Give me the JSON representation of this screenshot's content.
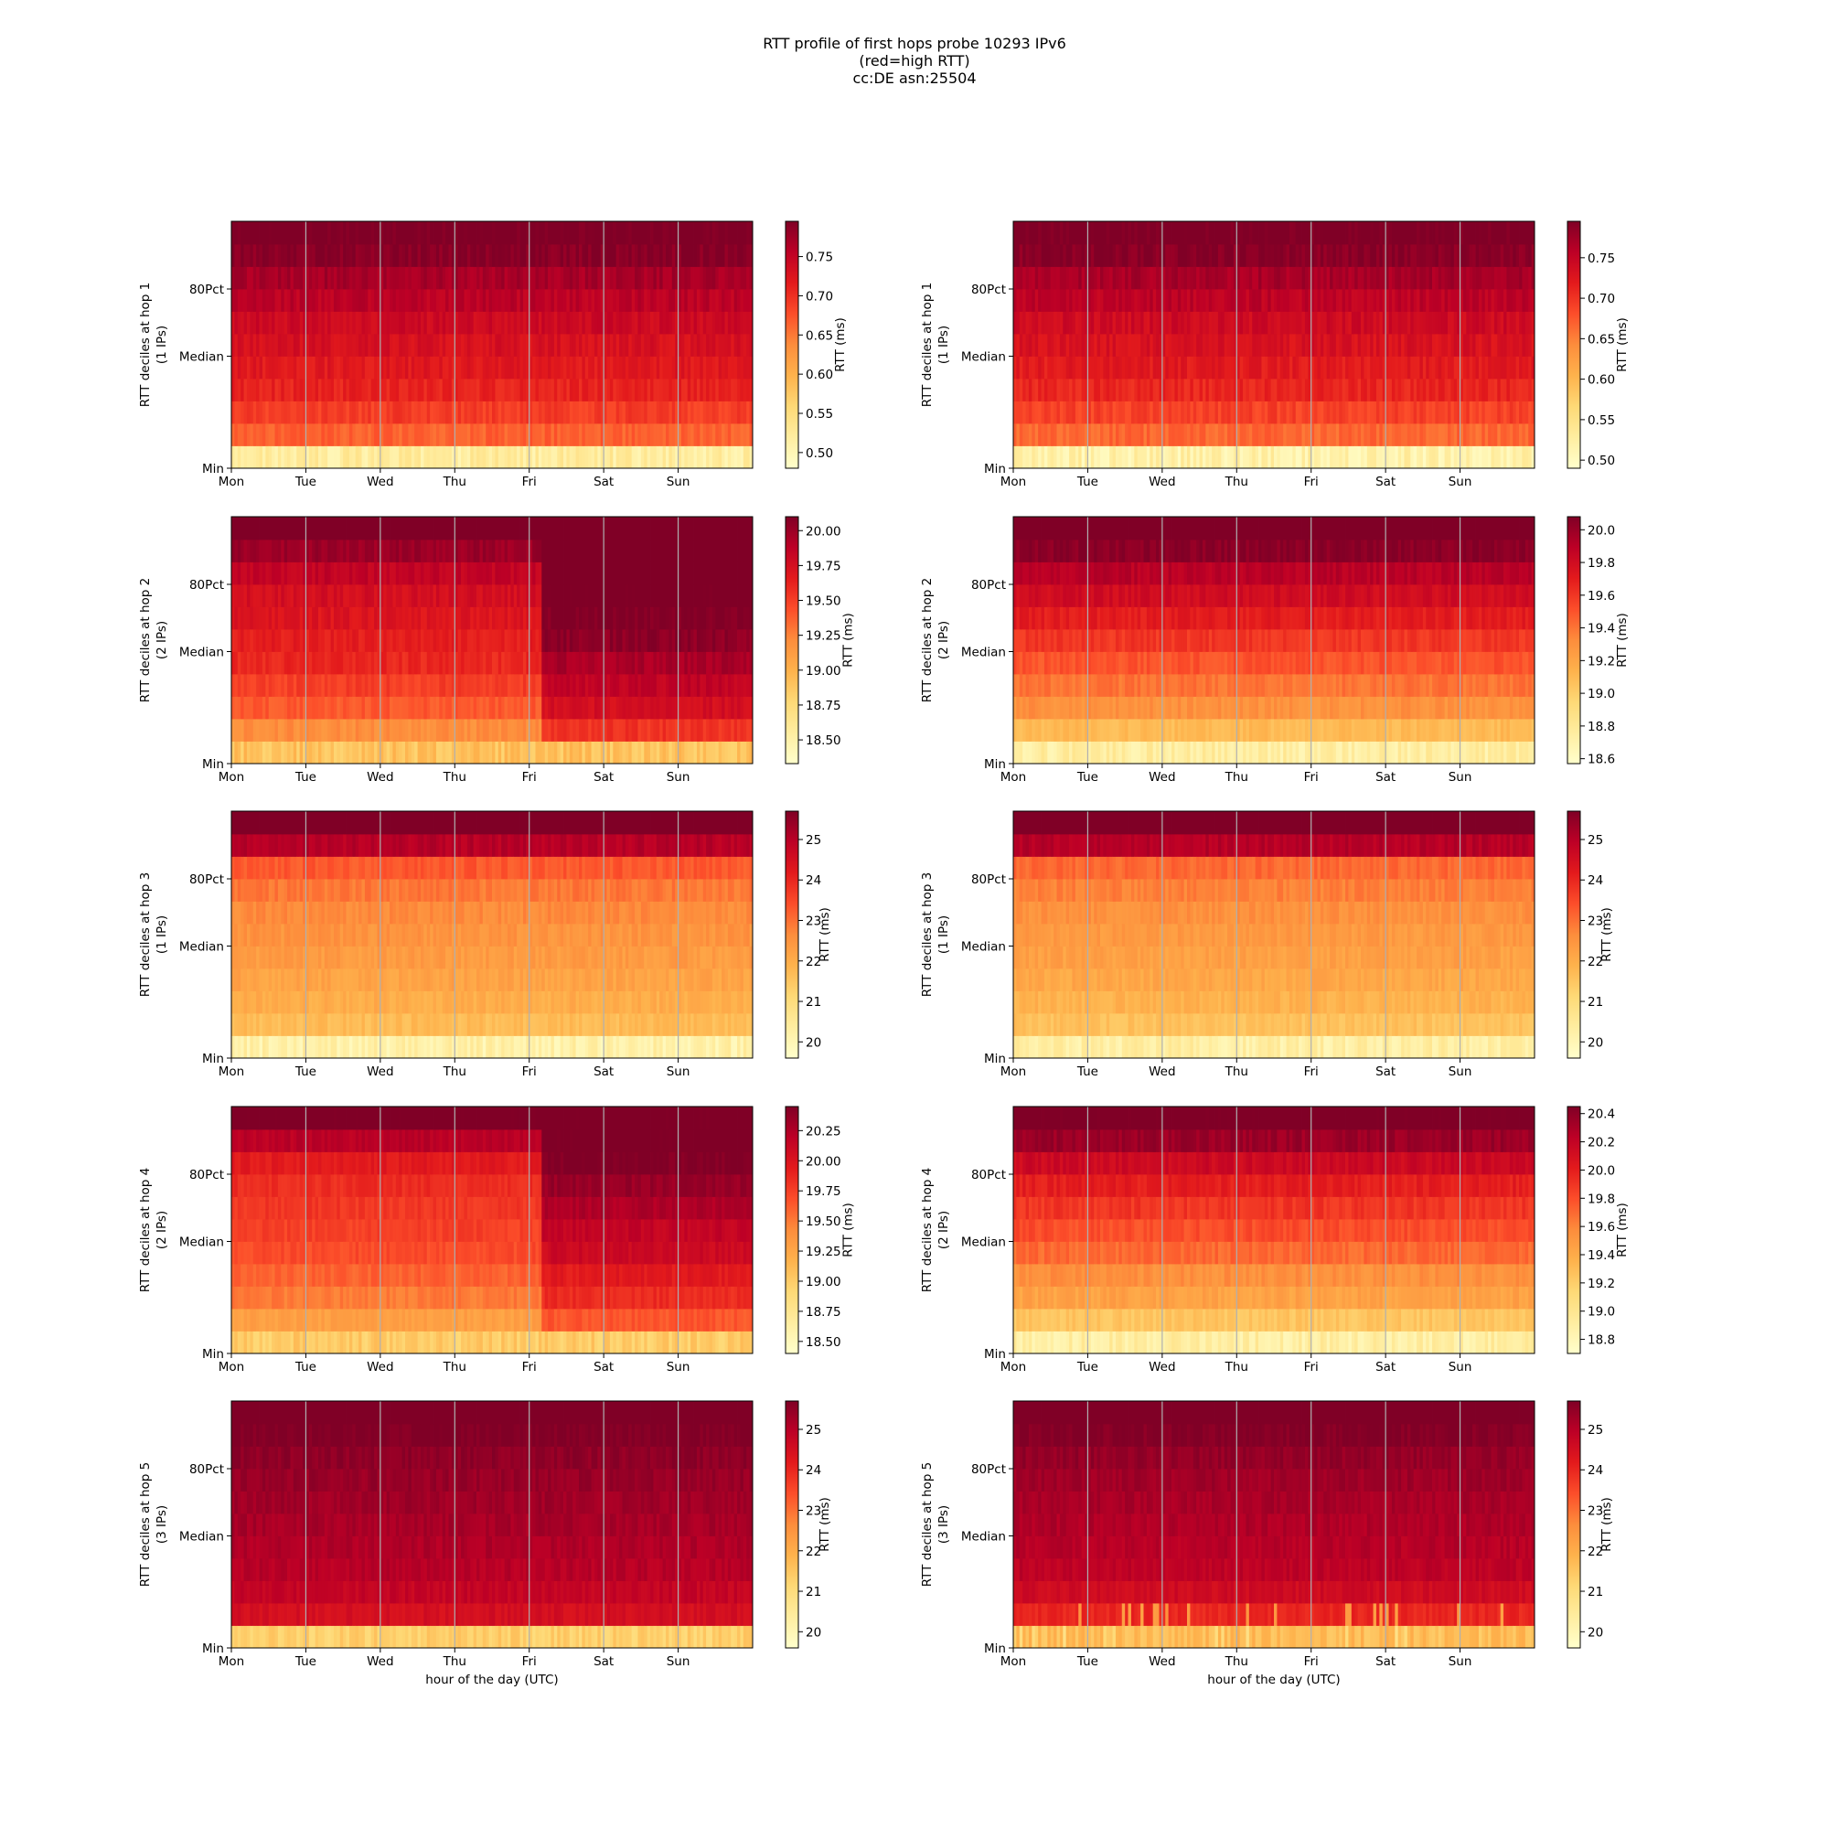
{
  "title": [
    "RTT profile of first hops probe 10293 IPv6",
    "(red=high RTT)",
    "cc:DE asn:25504"
  ],
  "colormap": [
    "#ffffcc",
    "#ffeda0",
    "#fed976",
    "#feb24c",
    "#fd8d3c",
    "#fc4e2a",
    "#e31a1c",
    "#bd0026",
    "#800026"
  ],
  "gridline_color": "#b0b0b0",
  "chart_data": [
    {
      "type": "heatmap",
      "hop": 1,
      "column": "left",
      "ylabel": [
        "RTT deciles at hop 1",
        "(1 IPs)"
      ],
      "xlabel": "",
      "xticks": [
        "Mon",
        "Tue",
        "Wed",
        "Thu",
        "Fri",
        "Sat",
        "Sun"
      ],
      "yticks": [
        "Min",
        "Median",
        "80Pct"
      ],
      "colorbar_label": "RTT (ms)",
      "colorbar_ticks": [
        "0.50",
        "0.55",
        "0.60",
        "0.65",
        "0.70",
        "0.75"
      ],
      "vmin": 0.48,
      "vmax": 0.795,
      "deciles": [
        0.52,
        0.665,
        0.69,
        0.71,
        0.72,
        0.73,
        0.74,
        0.755,
        0.77,
        0.79,
        0.8
      ],
      "noise": 0.012,
      "shift_at": null,
      "shift": [],
      "spikes": 0
    },
    {
      "type": "heatmap",
      "hop": 1,
      "column": "right",
      "ylabel": [
        "RTT deciles at hop 1",
        "(1 IPs)"
      ],
      "xlabel": "",
      "xticks": [
        "Mon",
        "Tue",
        "Wed",
        "Thu",
        "Fri",
        "Sat",
        "Sun"
      ],
      "yticks": [
        "Min",
        "Median",
        "80Pct"
      ],
      "colorbar_label": "RTT (ms)",
      "colorbar_ticks": [
        "0.50",
        "0.55",
        "0.60",
        "0.65",
        "0.70",
        "0.75"
      ],
      "vmin": 0.49,
      "vmax": 0.795,
      "deciles": [
        0.52,
        0.665,
        0.69,
        0.71,
        0.72,
        0.73,
        0.74,
        0.755,
        0.77,
        0.79,
        0.8
      ],
      "noise": 0.012,
      "shift_at": null,
      "shift": [],
      "spikes": 0
    },
    {
      "type": "heatmap",
      "hop": 2,
      "column": "left",
      "ylabel": [
        "RTT deciles at hop 2",
        "(2 IPs)"
      ],
      "xlabel": "",
      "xticks": [
        "Mon",
        "Tue",
        "Wed",
        "Thu",
        "Fri",
        "Sat",
        "Sun"
      ],
      "yticks": [
        "Min",
        "Median",
        "80Pct"
      ],
      "colorbar_label": "RTT (ms)",
      "colorbar_ticks": [
        "18.50",
        "18.75",
        "19.00",
        "19.25",
        "19.50",
        "19.75",
        "20.00"
      ],
      "vmin": 18.33,
      "vmax": 20.1,
      "deciles": [
        18.9,
        19.2,
        19.4,
        19.5,
        19.6,
        19.65,
        19.7,
        19.75,
        19.85,
        20.0,
        20.2
      ],
      "noise": 0.06,
      "shift_at": 4.15,
      "shift": [
        0.0,
        0.35,
        0.35,
        0.35,
        0.35,
        0.4,
        0.4,
        0.4,
        0.35,
        0.2,
        0.0
      ],
      "spikes": 0
    },
    {
      "type": "heatmap",
      "hop": 2,
      "column": "right",
      "ylabel": [
        "RTT deciles at hop 2",
        "(2 IPs)"
      ],
      "xlabel": "",
      "xticks": [
        "Mon",
        "Tue",
        "Wed",
        "Thu",
        "Fri",
        "Sat",
        "Sun"
      ],
      "yticks": [
        "Min",
        "Median",
        "80Pct"
      ],
      "colorbar_label": "RTT (ms)",
      "colorbar_ticks": [
        "18.6",
        "18.8",
        "19.0",
        "19.2",
        "19.4",
        "19.6",
        "19.8",
        "20.0"
      ],
      "vmin": 18.57,
      "vmax": 20.08,
      "deciles": [
        18.75,
        19.1,
        19.3,
        19.4,
        19.5,
        19.6,
        19.7,
        19.8,
        19.9,
        20.05,
        20.2
      ],
      "noise": 0.05,
      "shift_at": null,
      "shift": [],
      "spikes": 0
    },
    {
      "type": "heatmap",
      "hop": 3,
      "column": "left",
      "ylabel": [
        "RTT deciles at hop 3",
        "(1 IPs)"
      ],
      "xlabel": "",
      "xticks": [
        "Mon",
        "Tue",
        "Wed",
        "Thu",
        "Fri",
        "Sat",
        "Sun"
      ],
      "yticks": [
        "Min",
        "Median",
        "80Pct"
      ],
      "colorbar_label": "RTT (ms)",
      "colorbar_ticks": [
        "20",
        "21",
        "22",
        "23",
        "24",
        "25"
      ],
      "vmin": 19.6,
      "vmax": 25.7,
      "deciles": [
        20.2,
        21.7,
        22.0,
        22.2,
        22.35,
        22.5,
        22.65,
        22.9,
        23.3,
        25.0,
        26.0
      ],
      "noise": 0.2,
      "shift_at": null,
      "shift": [],
      "spikes": 0
    },
    {
      "type": "heatmap",
      "hop": 3,
      "column": "right",
      "ylabel": [
        "RTT deciles at hop 3",
        "(1 IPs)"
      ],
      "xlabel": "",
      "xticks": [
        "Mon",
        "Tue",
        "Wed",
        "Thu",
        "Fri",
        "Sat",
        "Sun"
      ],
      "yticks": [
        "Min",
        "Median",
        "80Pct"
      ],
      "colorbar_label": "RTT (ms)",
      "colorbar_ticks": [
        "20",
        "21",
        "22",
        "23",
        "24",
        "25"
      ],
      "vmin": 19.6,
      "vmax": 25.7,
      "deciles": [
        20.3,
        21.6,
        21.9,
        22.1,
        22.25,
        22.4,
        22.55,
        22.8,
        23.1,
        25.0,
        26.0
      ],
      "noise": 0.2,
      "shift_at": null,
      "shift": [],
      "spikes": 0
    },
    {
      "type": "heatmap",
      "hop": 4,
      "column": "left",
      "ylabel": [
        "RTT deciles at hop 4",
        "(2 IPs)"
      ],
      "xlabel": "",
      "xticks": [
        "Mon",
        "Tue",
        "Wed",
        "Thu",
        "Fri",
        "Sat",
        "Sun"
      ],
      "yticks": [
        "Min",
        "Median",
        "80Pct"
      ],
      "colorbar_label": "RTT (ms)",
      "colorbar_ticks": [
        "18.50",
        "18.75",
        "19.00",
        "19.25",
        "19.50",
        "19.75",
        "20.00",
        "20.25"
      ],
      "vmin": 18.4,
      "vmax": 20.45,
      "deciles": [
        19.0,
        19.3,
        19.5,
        19.6,
        19.7,
        19.75,
        19.8,
        19.85,
        19.95,
        20.2,
        20.5
      ],
      "noise": 0.06,
      "shift_at": 4.15,
      "shift": [
        0.0,
        0.35,
        0.35,
        0.35,
        0.4,
        0.4,
        0.45,
        0.5,
        0.5,
        0.3,
        0.0
      ],
      "spikes": 0
    },
    {
      "type": "heatmap",
      "hop": 4,
      "column": "right",
      "ylabel": [
        "RTT deciles at hop 4",
        "(2 IPs)"
      ],
      "xlabel": "",
      "xticks": [
        "Mon",
        "Tue",
        "Wed",
        "Thu",
        "Fri",
        "Sat",
        "Sun"
      ],
      "yticks": [
        "Min",
        "Median",
        "80Pct"
      ],
      "colorbar_label": "RTT (ms)",
      "colorbar_ticks": [
        "18.8",
        "19.0",
        "19.2",
        "19.4",
        "19.6",
        "19.8",
        "20.0",
        "20.2",
        "20.4"
      ],
      "vmin": 18.7,
      "vmax": 20.45,
      "deciles": [
        18.9,
        19.25,
        19.45,
        19.55,
        19.7,
        19.8,
        19.9,
        20.0,
        20.15,
        20.35,
        20.5
      ],
      "noise": 0.06,
      "shift_at": null,
      "shift": [],
      "spikes": 0
    },
    {
      "type": "heatmap",
      "hop": 5,
      "column": "left",
      "ylabel": [
        "RTT deciles at hop 5",
        "(3 IPs)"
      ],
      "xlabel": "hour of the day (UTC)",
      "xticks": [
        "Mon",
        "Tue",
        "Wed",
        "Thu",
        "Fri",
        "Sat",
        "Sun"
      ],
      "yticks": [
        "Min",
        "Median",
        "80Pct"
      ],
      "colorbar_label": "RTT (ms)",
      "colorbar_ticks": [
        "20",
        "21",
        "22",
        "23",
        "24",
        "25"
      ],
      "vmin": 19.6,
      "vmax": 25.7,
      "deciles": [
        21.3,
        24.5,
        24.8,
        25.0,
        25.1,
        25.2,
        25.3,
        25.4,
        25.5,
        25.7,
        26.0
      ],
      "noise": 0.18,
      "shift_at": null,
      "shift": [],
      "spikes": 0
    },
    {
      "type": "heatmap",
      "hop": 5,
      "column": "right",
      "ylabel": [
        "RTT deciles at hop 5",
        "(3 IPs)"
      ],
      "xlabel": "hour of the day (UTC)",
      "xticks": [
        "Mon",
        "Tue",
        "Wed",
        "Thu",
        "Fri",
        "Sat",
        "Sun"
      ],
      "yticks": [
        "Min",
        "Median",
        "80Pct"
      ],
      "colorbar_label": "RTT (ms)",
      "colorbar_ticks": [
        "20",
        "21",
        "22",
        "23",
        "24",
        "25"
      ],
      "vmin": 19.6,
      "vmax": 25.7,
      "deciles": [
        21.7,
        24.0,
        24.6,
        24.9,
        25.0,
        25.1,
        25.2,
        25.3,
        25.45,
        25.65,
        26.0
      ],
      "noise": 0.18,
      "shift_at": null,
      "shift": [],
      "spikes": 0.12
    }
  ]
}
